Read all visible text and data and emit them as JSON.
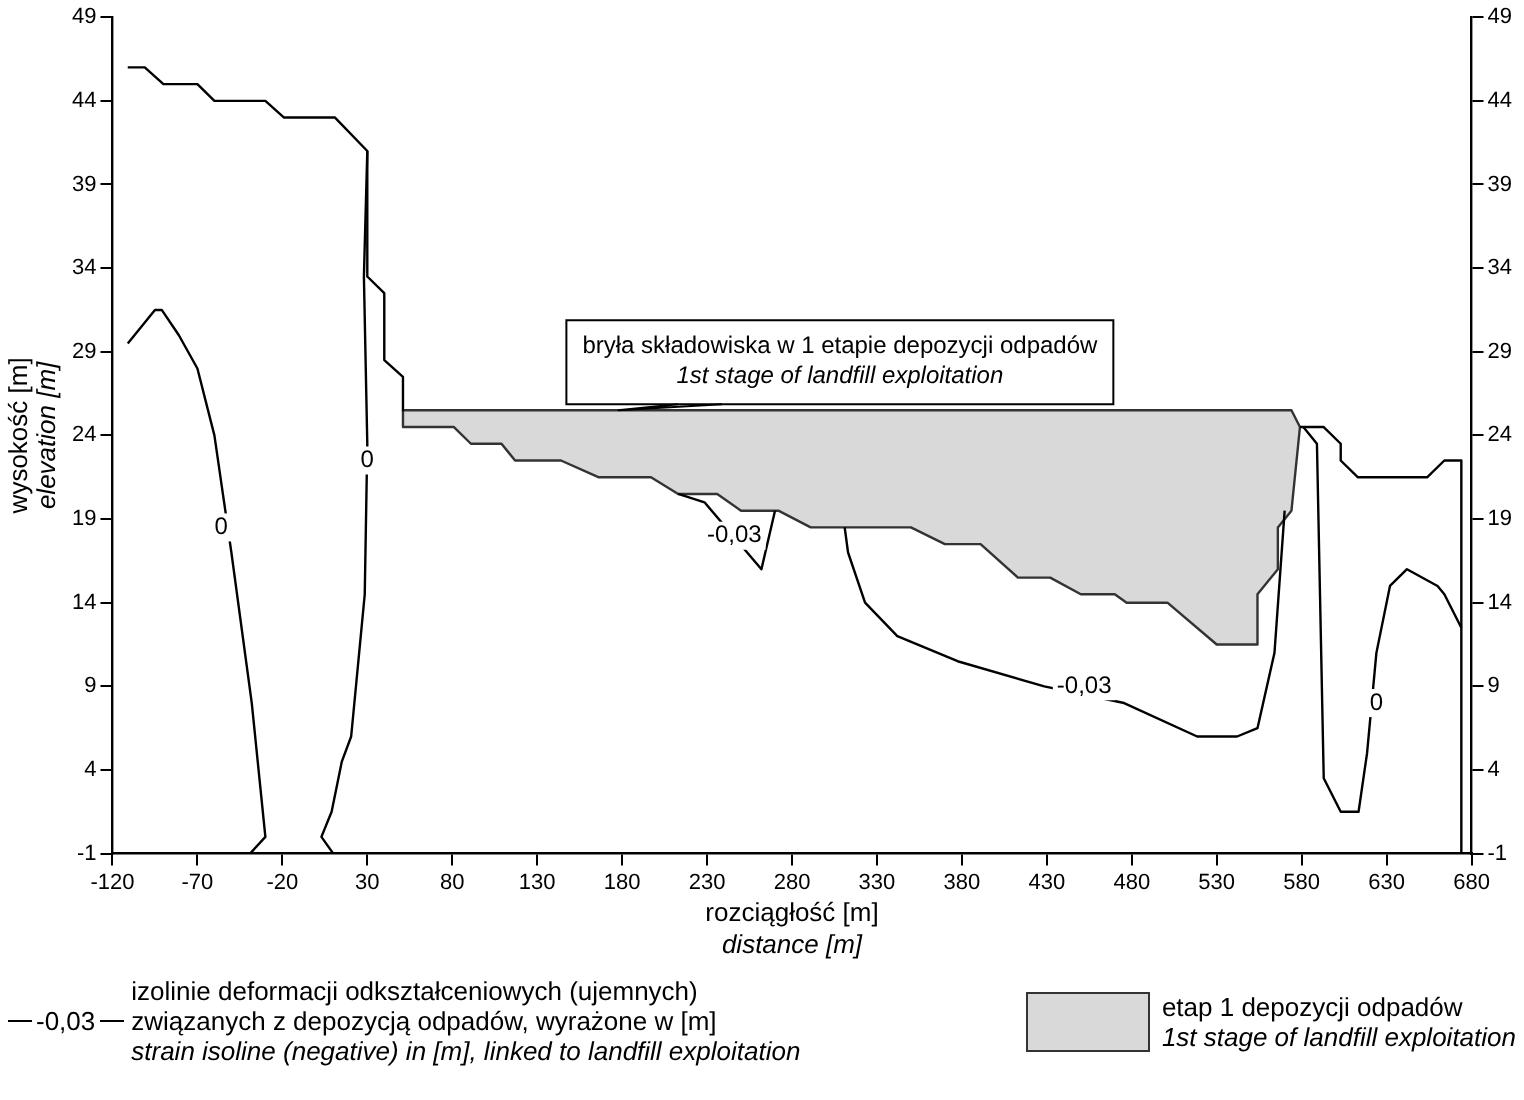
{
  "chart_data": {
    "type": "line",
    "xlabel": "rozciągłość [m]\ndistance [m]",
    "ylabel": "wysokość [m]\nelevation [m]",
    "xlim": [
      -120,
      680
    ],
    "xticks": [
      -120,
      -70,
      -20,
      30,
      80,
      130,
      180,
      230,
      280,
      330,
      380,
      430,
      480,
      530,
      580,
      630,
      680
    ],
    "ylim": [
      -1,
      49
    ],
    "yticks": [
      -1,
      4,
      9,
      14,
      19,
      24,
      29,
      34,
      39,
      44,
      49
    ],
    "y2lim": [
      -1,
      49
    ],
    "y2ticks": [
      -1,
      4,
      9,
      14,
      19,
      24,
      29,
      34,
      39,
      44,
      49
    ],
    "grid": false,
    "legend": "bottom",
    "series": [
      {
        "color": "#000000",
        "x": [
          -111,
          -101,
          -90,
          -70,
          -60,
          -30,
          -19,
          11,
          30,
          30,
          40,
          40,
          51,
          51
        ],
        "values": [
          46,
          46,
          45,
          45,
          44,
          44,
          43,
          43,
          41,
          33.5,
          32.5,
          28.5,
          27.5,
          25.5
        ]
      },
      {
        "color": "#000000",
        "x": [
          579,
          581,
          593,
          603,
          603,
          613,
          654,
          664,
          674,
          674
        ],
        "values": [
          24.5,
          24.5,
          24.5,
          23.5,
          22.5,
          21.5,
          21.5,
          22.5,
          22.5,
          -1
        ]
      },
      {
        "name": "-0,03",
        "color": "#000000",
        "x": [
          311,
          313,
          323,
          342,
          377.5,
          428.5,
          475.5,
          518.5,
          542,
          554,
          564,
          570
        ],
        "values": [
          18.5,
          17,
          14,
          12,
          10.5,
          9,
          8,
          6,
          6,
          6.5,
          11,
          19.5
        ]
      },
      {
        "color": "#000000",
        "x": [
          213,
          228.5,
          262,
          270
        ],
        "values": [
          20.5,
          20,
          16,
          19.5
        ]
      },
      {
        "color": "#000000",
        "x": [
          -111,
          -95,
          -91,
          -81,
          -70,
          -60,
          -50,
          -38,
          -30,
          -39
        ],
        "values": [
          29.5,
          31.5,
          31.5,
          30,
          28,
          24,
          17,
          8,
          0,
          -1
        ]
      },
      {
        "color": "#000000",
        "x": [
          30,
          28,
          30,
          28.5,
          20.5,
          15,
          9,
          3,
          10
        ],
        "values": [
          41,
          33.5,
          23.5,
          14.5,
          6,
          4.5,
          1.5,
          0,
          -1
        ]
      },
      {
        "color": "#000000",
        "x": [
          581,
          589,
          593,
          603,
          613.5,
          618.5,
          624,
          632,
          642,
          660,
          664,
          674
        ],
        "values": [
          24.5,
          23.5,
          3.5,
          1.5,
          1.5,
          5,
          11,
          15,
          16,
          15,
          14.5,
          12.5
        ]
      },
      {
        "type": "area",
        "name": "etap 1 depozycji odpadów\n1st stage of landfill exploitation",
        "color": "#d9d9d9",
        "x": [
          51,
          574,
          579,
          574,
          566,
          566,
          554,
          554,
          530,
          501,
          477,
          470,
          450,
          432,
          413,
          391,
          370,
          350,
          291,
          272,
          250,
          236,
          213,
          197,
          166,
          144,
          117,
          109,
          91,
          81,
          51,
          51
        ],
        "values": [
          25.5,
          25.5,
          24.5,
          19.5,
          18.5,
          16,
          14.5,
          11.5,
          11.5,
          14,
          14,
          14.5,
          14.5,
          15.5,
          15.5,
          17.5,
          17.5,
          18.5,
          18.5,
          19.5,
          19.5,
          20.5,
          20.5,
          21.5,
          21.5,
          22.5,
          22.5,
          23.5,
          23.5,
          24.5,
          24.5,
          25.5
        ]
      }
    ],
    "annotations": [
      {
        "text": "bryła składowiska w 1 etapie depozycji odpadów\n1st stage of landfill exploitation",
        "x": 177.5,
        "y": 25.5
      },
      {
        "text": "0",
        "x": -56,
        "y": 18.5
      },
      {
        "text": "0",
        "x": 30,
        "y": 22.5
      },
      {
        "text": "0",
        "x": 624,
        "y": 8
      },
      {
        "text": "-0,03",
        "x": 246,
        "y": 18
      },
      {
        "text": "-0,03",
        "x": 452,
        "y": 9
      },
      "izolinie deformacji odkształceniowych (ujemnych)\nzwiązanych z depozycją odpadów, wyrażone w [m]\nstrain isoline (negative) in [m], linked to landfill exploitation"
    ]
  }
}
